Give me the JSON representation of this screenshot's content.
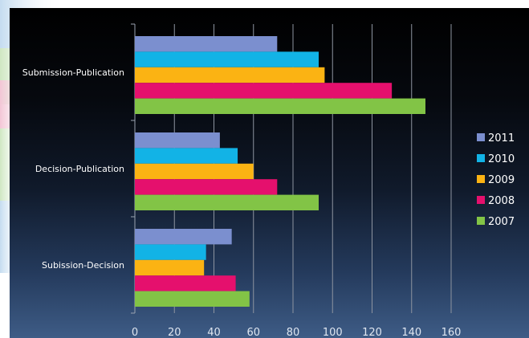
{
  "chart_data": {
    "type": "bar",
    "orientation": "horizontal",
    "categories": [
      "Submission-Publication",
      "Decision-Publication",
      "Subission-Decision"
    ],
    "series": [
      {
        "name": "2011",
        "color": "#7b8fcf",
        "values": [
          72,
          43,
          49
        ]
      },
      {
        "name": "2010",
        "color": "#12b3e6",
        "values": [
          93,
          52,
          36
        ]
      },
      {
        "name": "2009",
        "color": "#fbb313",
        "values": [
          96,
          60,
          35
        ]
      },
      {
        "name": "2008",
        "color": "#e5106d",
        "values": [
          130,
          72,
          51
        ]
      },
      {
        "name": "2007",
        "color": "#82c446",
        "values": [
          147,
          93,
          58
        ]
      }
    ],
    "xlim": [
      0,
      160
    ],
    "xticks": [
      "0",
      "20",
      "40",
      "60",
      "80",
      "100",
      "120",
      "140",
      "160"
    ],
    "grid": "vertical",
    "legend_position": "right"
  }
}
